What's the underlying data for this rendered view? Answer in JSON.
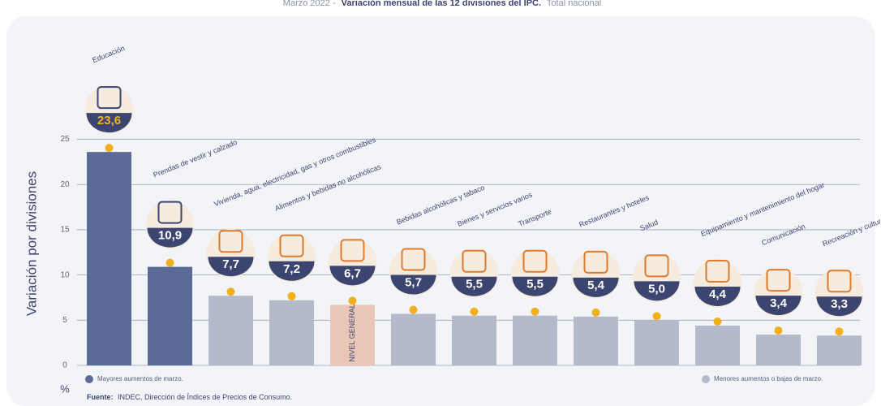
{
  "chart_data": {
    "type": "bar",
    "title": [
      "Marzo 2022 -",
      "Variación mensual de las 12 divisiones del IPC.",
      "Total nacional"
    ],
    "y_label": "Variación por divisiones",
    "y_unit": "%",
    "categories": [
      "Educación",
      "Prendas de vestir y calzado",
      "Vivienda, agua, electricidad, gas y otros combustibles",
      "Alimentos y bebidas no alcohólicas",
      "NIVEL GENERAL",
      "Bebidas alcohólicas y tabaco",
      "Bienes y servicios varios",
      "Transporte",
      "Restaurantes y hoteles",
      "Salud",
      "Equipamiento y mantenimiento del hogar",
      "Comunicación",
      "Recreación y cultura"
    ],
    "values": [
      23.6,
      10.9,
      7.7,
      7.2,
      6.7,
      5.7,
      5.5,
      5.5,
      5.4,
      5.0,
      4.4,
      3.4,
      3.3
    ],
    "value_labels": [
      "23,6",
      "10,9",
      "7,7",
      "7,2",
      "6,7",
      "5,7",
      "5,5",
      "5,5",
      "5,4",
      "5,0",
      "4,4",
      "3,4",
      "3,3"
    ],
    "colors": [
      "#5b6b97",
      "#5b6b97",
      "#b5bacb",
      "#b5bacb",
      "#e9c6b6",
      "#b5bacb",
      "#b5bacb",
      "#b5bacb",
      "#b5bacb",
      "#b5bacb",
      "#b5bacb",
      "#b5bacb",
      "#b5bacb"
    ],
    "ylim": [
      0,
      25.5
    ],
    "yticks": [
      0,
      5,
      10,
      15,
      20,
      25
    ],
    "grid": true,
    "legend": [
      {
        "name": "Mayores aumentos de marzo.",
        "color": "#5b6b97"
      },
      {
        "name": "Menores aumentos o bajas de marzo.",
        "color": "#b5bacb"
      }
    ],
    "source": [
      "Fuente:",
      "INDEC, Dirección de Índices de Precios de Consumo."
    ]
  }
}
